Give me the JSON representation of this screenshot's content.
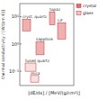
{
  "chart_data": {
    "type": "range",
    "x_label": "[dE/dx] / [MeV/(g/cm²)]",
    "y_label": "thermal conductivity / [W/(cm K)]",
    "log": "y",
    "xlim": [
      1,
      2
    ],
    "ylim": [
      0.03,
      30
    ],
    "yticks": [
      {
        "value": 0.1,
        "label": "10⁻¹"
      },
      {
        "value": 1,
        "label": "10⁰"
      },
      {
        "value": 10,
        "label": "10¹"
      }
    ],
    "tick_labels": "y",
    "legend": "upper right",
    "series": [
      {
        "name": "crystal",
        "color": "#e07070"
      },
      {
        "name": "glass",
        "color": "#f4c4c4"
      }
    ],
    "items": [
      {
        "label": "topaz",
        "x": [
          1.55,
          1.65
        ],
        "y": [
          5,
          15
        ],
        "color": "#e07070"
      },
      {
        "label": "cryst. quartz",
        "x": [
          1.05,
          1.2
        ],
        "y": [
          3,
          8
        ],
        "color": "#e07070"
      },
      {
        "label": "LiF",
        "x": [
          1.7,
          1.85
        ],
        "y": [
          1.5,
          6
        ],
        "color": "#e07070"
      },
      {
        "label": "sapphire",
        "x": [
          1.3,
          1.45
        ],
        "y": [
          0.4,
          1.2
        ],
        "color": "#e07070"
      },
      {
        "label": "fused quartz",
        "x": [
          1.1,
          1.3
        ],
        "y": [
          0.1,
          0.2
        ],
        "color": "#f4c4c4"
      },
      {
        "label": "mica",
        "x": [
          1.2,
          1.35
        ],
        "y": [
          0.04,
          0.07
        ],
        "color": "#f4c4c4"
      }
    ]
  }
}
